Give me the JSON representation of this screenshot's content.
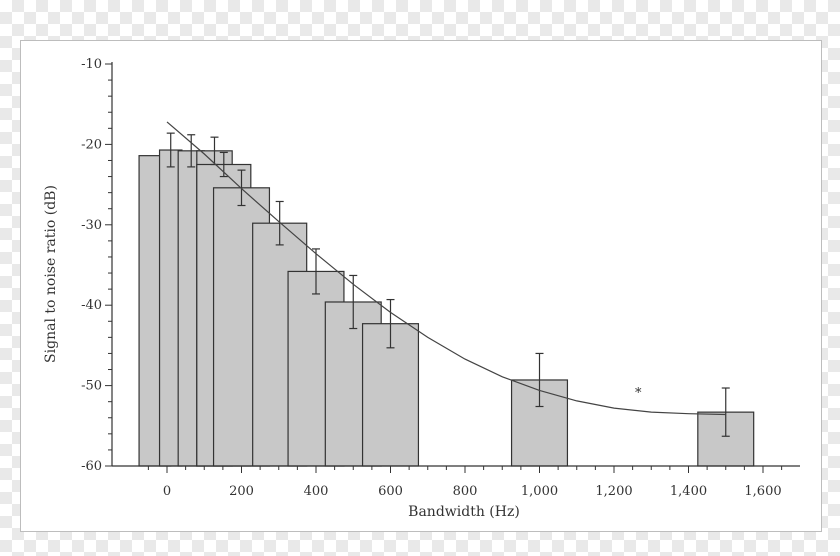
{
  "chart_data": {
    "type": "bar",
    "xlabel": "Bandwidth (Hz)",
    "ylabel": "Signal to noise ratio (dB)",
    "xlim": [
      -75,
      1700
    ],
    "ylim": [
      -60,
      -10
    ],
    "x_ticks": [
      0,
      200,
      400,
      600,
      800,
      1000,
      1200,
      1400,
      1600
    ],
    "x_tick_labels": [
      "0",
      "200",
      "400",
      "600",
      "800",
      "1,000",
      "1,200",
      "1,400",
      "1,600"
    ],
    "y_ticks": [
      -10,
      -20,
      -30,
      -40,
      -50,
      -60
    ],
    "y_tick_labels": [
      "-10",
      "-20",
      "-30",
      "-40",
      "-50",
      "-60"
    ],
    "grid": false,
    "bar_color": "#c8c8c8",
    "bars": [
      {
        "x0": -75,
        "x1": 10,
        "value": -21.4,
        "err": null
      },
      {
        "x0": -20,
        "x1": 40,
        "value": -20.7,
        "err": 2.1
      },
      {
        "x0": 30,
        "x1": 100,
        "value": -20.8,
        "err": 2.0
      },
      {
        "x0": 80,
        "x1": 175,
        "value": -20.8,
        "err": 1.7
      },
      {
        "x0": 80,
        "x1": 225,
        "value": -22.5,
        "err": 1.5
      },
      {
        "x0": 125,
        "x1": 275,
        "value": -25.4,
        "err": 2.2
      },
      {
        "x0": 230,
        "x1": 375,
        "value": -29.8,
        "err": 2.7
      },
      {
        "x0": 325,
        "x1": 475,
        "value": -35.8,
        "err": 2.8
      },
      {
        "x0": 425,
        "x1": 575,
        "value": -39.6,
        "err": 3.3
      },
      {
        "x0": 525,
        "x1": 675,
        "value": -42.3,
        "err": 3.0
      },
      {
        "x0": 925,
        "x1": 1075,
        "value": -49.3,
        "err": 3.3
      },
      {
        "x0": 1425,
        "x1": 1575,
        "value": -53.3,
        "err": 3.0
      }
    ],
    "fit_curve": {
      "x": [
        0,
        100,
        200,
        300,
        400,
        500,
        600,
        700,
        800,
        900,
        1000,
        1100,
        1200,
        1300,
        1400,
        1500
      ],
      "y": [
        -17.2,
        -21.2,
        -25.5,
        -29.6,
        -33.6,
        -37.4,
        -40.9,
        -44.0,
        -46.7,
        -48.9,
        -50.6,
        -51.9,
        -52.8,
        -53.3,
        -53.5,
        -53.6
      ]
    },
    "annotations": [
      {
        "text": "*",
        "x": 1265,
        "y": -50.3
      }
    ]
  }
}
